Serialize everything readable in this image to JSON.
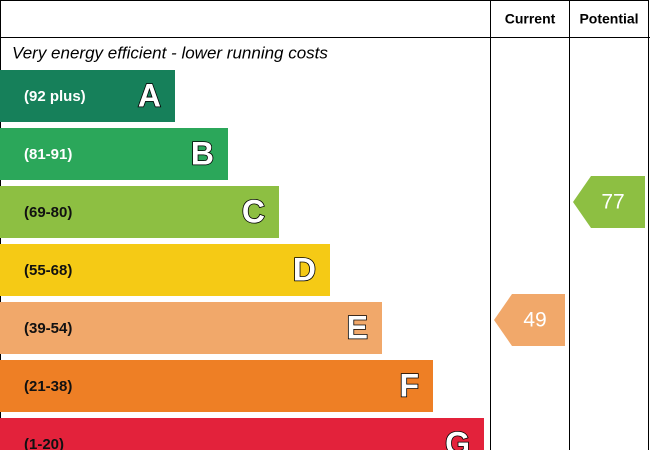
{
  "header": {
    "current": "Current",
    "potential": "Potential"
  },
  "subtitle": "Very energy efficient - lower running costs",
  "bands": [
    {
      "letter": "A",
      "range": "(92 plus)",
      "color": "#16805a"
    },
    {
      "letter": "B",
      "range": "(81-91)",
      "color": "#2ba75a"
    },
    {
      "letter": "C",
      "range": "(69-80)",
      "color": "#8dbf42"
    },
    {
      "letter": "D",
      "range": "(55-68)",
      "color": "#f5ca15"
    },
    {
      "letter": "E",
      "range": "(39-54)",
      "color": "#f1a86a"
    },
    {
      "letter": "F",
      "range": "(21-38)",
      "color": "#ee7f25"
    },
    {
      "letter": "G",
      "range": "(1-20)",
      "color": "#e3223b"
    }
  ],
  "ratings": {
    "current": 49,
    "potential": 77
  }
}
